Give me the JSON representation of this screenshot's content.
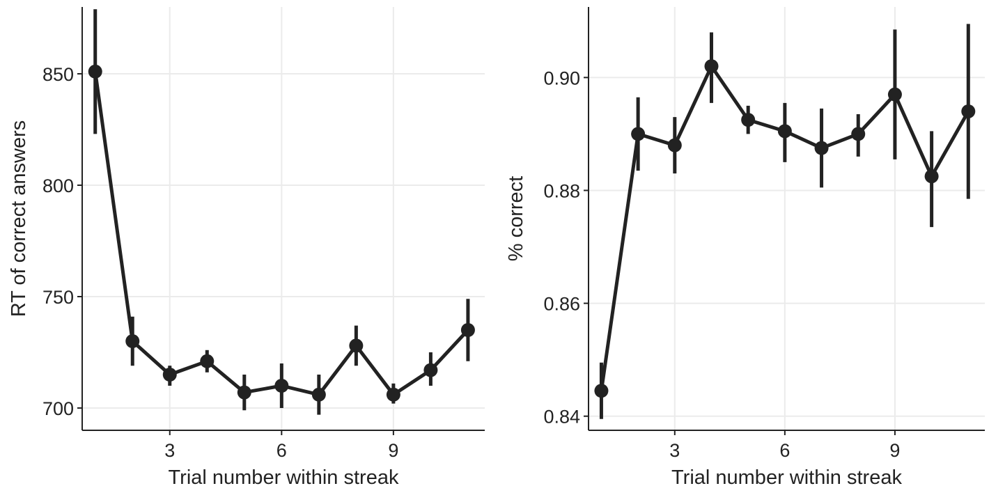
{
  "chart_data": [
    {
      "type": "line",
      "xlabel": "Trial number within streak",
      "ylabel": "RT of correct answers",
      "xlim": [
        0.65,
        11.45
      ],
      "ylim": [
        690,
        880
      ],
      "xticks": [
        3,
        6,
        9
      ],
      "yticks": [
        700,
        750,
        800,
        850
      ],
      "ytick_labels": [
        "700",
        "750",
        "800",
        "850"
      ],
      "grid": true,
      "series": [
        {
          "x": [
            1,
            2,
            3,
            4,
            5,
            6,
            7,
            8,
            9,
            10,
            11
          ],
          "y": [
            851,
            730,
            715,
            721,
            707,
            710,
            706,
            728,
            706,
            717,
            735
          ],
          "err_low": [
            823,
            719,
            710,
            716,
            699,
            700,
            697,
            719,
            702,
            710,
            721
          ],
          "err_high": [
            879,
            741,
            719,
            726,
            715,
            720,
            715,
            737,
            711,
            725,
            749
          ]
        }
      ]
    },
    {
      "type": "line",
      "xlabel": "Trial number within streak",
      "ylabel": "% correct",
      "xlim": [
        0.65,
        11.45
      ],
      "ylim": [
        0.8375,
        0.9125
      ],
      "xticks": [
        3,
        6,
        9
      ],
      "yticks": [
        0.84,
        0.86,
        0.88,
        0.9
      ],
      "ytick_labels": [
        "0.84",
        "0.86",
        "0.88",
        "0.90"
      ],
      "grid": true,
      "series": [
        {
          "x": [
            1,
            2,
            3,
            4,
            5,
            6,
            7,
            8,
            9,
            10,
            11
          ],
          "y": [
            0.8445,
            0.89,
            0.888,
            0.902,
            0.8925,
            0.8905,
            0.8875,
            0.89,
            0.897,
            0.8825,
            0.894
          ],
          "err_low": [
            0.8395,
            0.8835,
            0.883,
            0.8955,
            0.89,
            0.885,
            0.8805,
            0.886,
            0.8855,
            0.8735,
            0.8785
          ],
          "err_high": [
            0.8495,
            0.8965,
            0.893,
            0.908,
            0.895,
            0.8955,
            0.8945,
            0.8935,
            0.9085,
            0.8905,
            0.9095
          ]
        }
      ]
    }
  ]
}
